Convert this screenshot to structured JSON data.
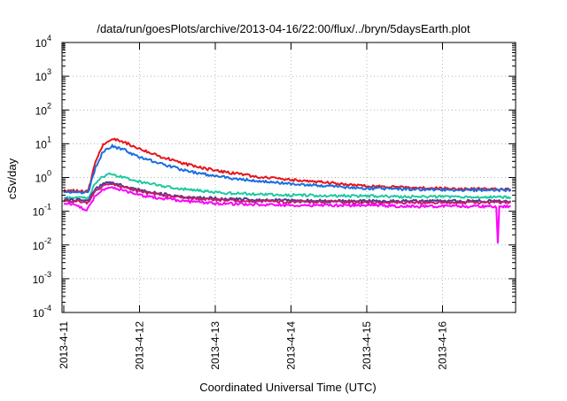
{
  "chart_data": {
    "type": "line",
    "title": "/data/run/goesPlots/archive/2013-04-16/22:00/flux/../bryn/5daysEarth.plot",
    "xlabel": "Coordinated Universal Time (UTC)",
    "ylabel": "cSv/day",
    "y_scale": "log",
    "ylim_exponents": [
      -4,
      4
    ],
    "y_tick_labels": [
      {
        "base": "10",
        "exp": "4"
      },
      {
        "base": "10",
        "exp": "3"
      },
      {
        "base": "10",
        "exp": "2"
      },
      {
        "base": "10",
        "exp": "1"
      },
      {
        "base": "10",
        "exp": "0"
      },
      {
        "base": "10",
        "exp": "-1"
      },
      {
        "base": "10",
        "exp": "-2"
      },
      {
        "base": "10",
        "exp": "-3"
      },
      {
        "base": "10",
        "exp": "-4"
      }
    ],
    "x_tick_labels": [
      "2013-4-11",
      "2013-4-12",
      "2013-4-13",
      "2013-4-14",
      "2013-4-15",
      "2013-4-16"
    ],
    "xlim_days": [
      0,
      5.9
    ],
    "grid": true,
    "series": [
      {
        "color": "#e8141a",
        "x": [
          0,
          0.16,
          0.32,
          0.42,
          0.52,
          0.64,
          0.8,
          1.0,
          1.3,
          1.6,
          2.0,
          2.5,
          3.0,
          3.5,
          4.0,
          4.5,
          5.0,
          5.5,
          5.9
        ],
        "y": [
          0.4,
          0.4,
          0.38,
          3,
          9,
          14,
          11,
          7,
          4,
          2.5,
          1.6,
          1.1,
          0.85,
          0.7,
          0.55,
          0.5,
          0.47,
          0.45,
          0.45
        ]
      },
      {
        "color": "#1a6ee0",
        "x": [
          0,
          0.16,
          0.32,
          0.42,
          0.52,
          0.64,
          0.8,
          1.0,
          1.3,
          1.6,
          2.0,
          2.5,
          3.0,
          3.5,
          4.0,
          4.5,
          5.0,
          5.5,
          5.9
        ],
        "y": [
          0.38,
          0.38,
          0.35,
          2,
          6,
          8.5,
          6.5,
          4,
          2.5,
          1.6,
          1.1,
          0.8,
          0.65,
          0.55,
          0.48,
          0.45,
          0.43,
          0.42,
          0.42
        ]
      },
      {
        "color": "#1ec9a0",
        "x": [
          0,
          0.16,
          0.32,
          0.42,
          0.52,
          0.64,
          0.8,
          1.0,
          1.3,
          1.6,
          2.0,
          2.5,
          3.0,
          3.5,
          4.0,
          4.5,
          5.0,
          5.5,
          5.9
        ],
        "y": [
          0.25,
          0.25,
          0.24,
          0.7,
          1.1,
          1.25,
          1.0,
          0.75,
          0.55,
          0.45,
          0.36,
          0.32,
          0.3,
          0.29,
          0.28,
          0.27,
          0.27,
          0.26,
          0.26
        ]
      },
      {
        "color": "#4a3c8c",
        "x": [
          0,
          0.16,
          0.32,
          0.42,
          0.52,
          0.64,
          0.8,
          1.0,
          1.3,
          1.6,
          2.0,
          2.5,
          3.0,
          3.5,
          4.0,
          4.5,
          5.0,
          5.5,
          5.9
        ],
        "y": [
          0.22,
          0.22,
          0.2,
          0.45,
          0.65,
          0.7,
          0.55,
          0.42,
          0.32,
          0.27,
          0.24,
          0.22,
          0.21,
          0.2,
          0.2,
          0.2,
          0.2,
          0.2,
          0.2
        ]
      },
      {
        "color": "#c21e6e",
        "x": [
          0,
          0.16,
          0.32,
          0.42,
          0.52,
          0.64,
          0.8,
          1.0,
          1.3,
          1.6,
          2.0,
          2.5,
          3.0,
          3.5,
          4.0,
          4.5,
          5.0,
          5.5,
          5.9
        ],
        "y": [
          0.2,
          0.2,
          0.18,
          0.4,
          0.58,
          0.62,
          0.5,
          0.38,
          0.3,
          0.25,
          0.22,
          0.2,
          0.19,
          0.19,
          0.18,
          0.18,
          0.18,
          0.18,
          0.18
        ]
      },
      {
        "color": "#ff00ff",
        "x": [
          0,
          0.16,
          0.3,
          0.34,
          0.42,
          0.52,
          0.64,
          0.8,
          1.0,
          1.3,
          1.6,
          2.0,
          2.5,
          3.0,
          3.5,
          4.0,
          4.5,
          5.0,
          5.5,
          5.71,
          5.73,
          5.75,
          5.9
        ],
        "y": [
          0.16,
          0.16,
          0.1,
          0.15,
          0.3,
          0.45,
          0.5,
          0.4,
          0.3,
          0.24,
          0.2,
          0.17,
          0.16,
          0.15,
          0.15,
          0.15,
          0.14,
          0.14,
          0.14,
          0.14,
          0.012,
          0.14,
          0.14
        ]
      }
    ]
  }
}
